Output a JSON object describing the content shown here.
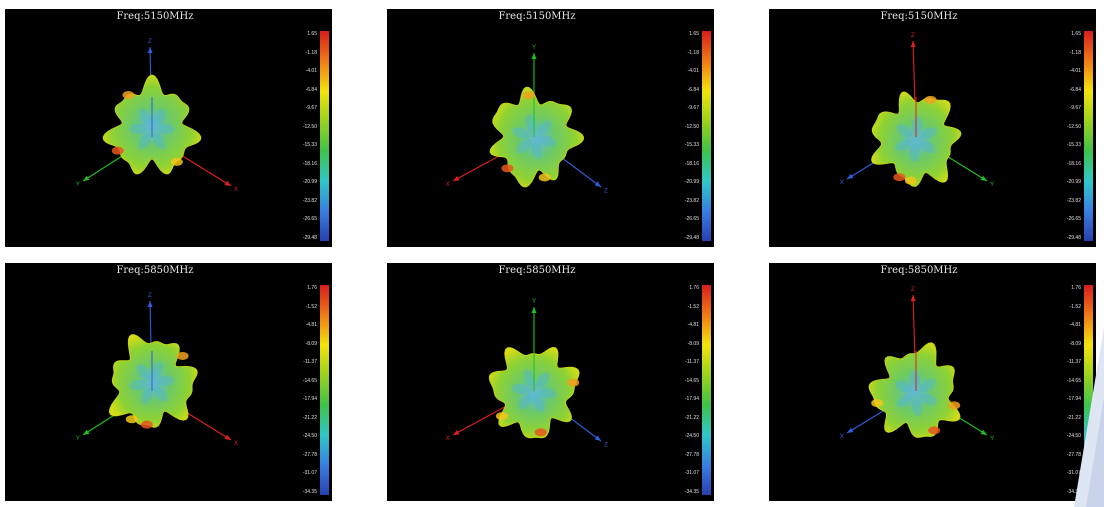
{
  "panels": [
    {
      "id": "p1",
      "title": "Freq:5150MHz",
      "view": 1,
      "hue": 0,
      "ticks": [
        "1.65",
        "-1.18",
        "-4.01",
        "-6.84",
        "-9.67",
        "-12.50",
        "-15.33",
        "-18.16",
        "-20.99",
        "-23.82",
        "-26.65",
        "-29.48"
      ],
      "axes": {
        "vertical": {
          "color": "#2f5ed8",
          "label": "Z"
        },
        "left": {
          "color": "#20c020",
          "label": "Y"
        },
        "right": {
          "color": "#e02020",
          "label": "X"
        }
      }
    },
    {
      "id": "p2",
      "title": "Freq:5150MHz",
      "view": 2,
      "hue": 1,
      "ticks": [
        "1.65",
        "-1.18",
        "-4.01",
        "-6.84",
        "-9.67",
        "-12.50",
        "-15.33",
        "-18.16",
        "-20.99",
        "-23.82",
        "-26.65",
        "-29.48"
      ],
      "axes": {
        "vertical": {
          "color": "#20c020",
          "label": "Y"
        },
        "left": {
          "color": "#e02020",
          "label": "X"
        },
        "right": {
          "color": "#2f5ed8",
          "label": "Z"
        }
      }
    },
    {
      "id": "p3",
      "title": "Freq:5150MHz",
      "view": 3,
      "hue": 2,
      "ticks": [
        "1.65",
        "-1.18",
        "-4.01",
        "-6.84",
        "-9.67",
        "-12.50",
        "-15.33",
        "-18.16",
        "-20.99",
        "-23.82",
        "-26.65",
        "-29.48"
      ],
      "axes": {
        "vertical": {
          "color": "#e02020",
          "label": "Z"
        },
        "left": {
          "color": "#2f5ed8",
          "label": "X"
        },
        "right": {
          "color": "#20c020",
          "label": "Y"
        }
      }
    },
    {
      "id": "p4",
      "title": "Freq:5850MHz",
      "view": 1,
      "hue": 0,
      "ticks": [
        "1.76",
        "-1.52",
        "-4.81",
        "-8.09",
        "-11.37",
        "-14.65",
        "-17.94",
        "-21.22",
        "-24.50",
        "-27.78",
        "-31.07",
        "-34.35"
      ],
      "axes": {
        "vertical": {
          "color": "#2f5ed8",
          "label": "Z"
        },
        "left": {
          "color": "#20c020",
          "label": "Y"
        },
        "right": {
          "color": "#e02020",
          "label": "X"
        }
      }
    },
    {
      "id": "p5",
      "title": "Freq:5850MHz",
      "view": 2,
      "hue": 1,
      "ticks": [
        "1.76",
        "-1.52",
        "-4.81",
        "-8.09",
        "-11.37",
        "-14.65",
        "-17.94",
        "-21.22",
        "-24.50",
        "-27.78",
        "-31.07",
        "-34.35"
      ],
      "axes": {
        "vertical": {
          "color": "#20c020",
          "label": "Y"
        },
        "left": {
          "color": "#e02020",
          "label": "X"
        },
        "right": {
          "color": "#2f5ed8",
          "label": "Z"
        }
      }
    },
    {
      "id": "p6",
      "title": "Freq:5850MHz",
      "view": 3,
      "hue": 2,
      "ticks": [
        "1.76",
        "-1.52",
        "-4.81",
        "-8.09",
        "-11.37",
        "-14.65",
        "-17.94",
        "-21.22",
        "-24.50",
        "-27.78",
        "-31.07",
        "-34.35"
      ],
      "axes": {
        "vertical": {
          "color": "#e02020",
          "label": "Z"
        },
        "left": {
          "color": "#2f5ed8",
          "label": "X"
        },
        "right": {
          "color": "#20c020",
          "label": "Y"
        }
      }
    }
  ],
  "colorscale": [
    "#d61d1d",
    "#f07a16",
    "#f3e30e",
    "#9bd21e",
    "#3fc24a",
    "#2fc7c9",
    "#3a7fe0",
    "#2740b0"
  ]
}
